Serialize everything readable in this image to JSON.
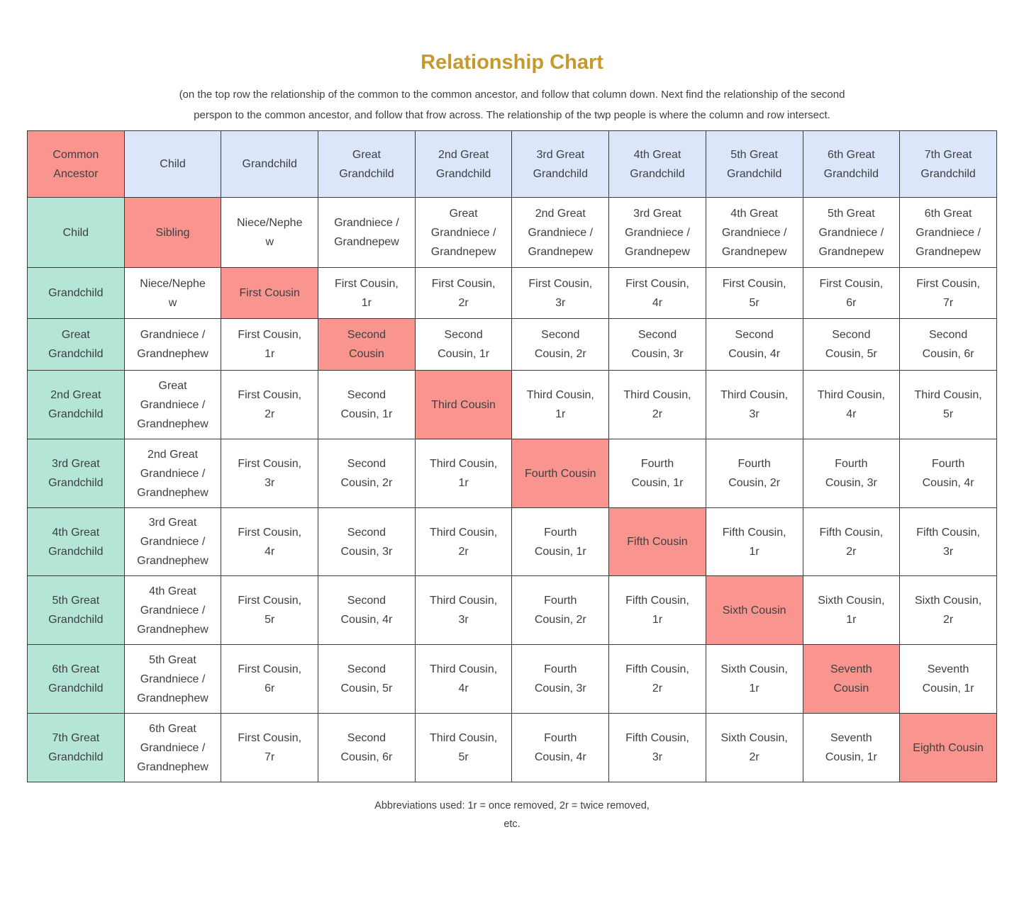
{
  "title": "Relationship Chart",
  "subtitle": "(on the top row the relationship of the common to the common ancestor, and follow  that column down. Next find the relationship of the second perspon to the common ancestor, and follow that frow across. The relationship of  the twp people is where the column and row intersect.",
  "colors": {
    "accent": "#F9958E",
    "row-header": "#B4E5D6",
    "col-header": "#DBE6FA",
    "title-gold": "#C49A2E",
    "text": "#3C4043"
  },
  "table": {
    "header": [
      "Common Ancestor",
      "Child",
      "Grandchild",
      "Great Grandchild",
      "2nd Great Grandchild",
      "3rd Great Grandchild",
      "4th Great Grandchild",
      "5th Great Grandchild",
      "6th Great Grandchild",
      "7th Great Grandchild"
    ],
    "rows": [
      {
        "cells": [
          "Child",
          "Sibling",
          "Niece/Nephew",
          "Grandniece / Grandnepew",
          "Great Grandniece / Grandnepew",
          "2nd Great Grandniece / Grandnepew",
          "3rd Great Grandniece / Grandnepew",
          "4th Great Grandniece / Grandnepew",
          "5th Great Grandniece / Grandnepew",
          "6th Great Grandniece / Grandnepew"
        ]
      },
      {
        "cells": [
          "Grandchild",
          "Niece/Nephew",
          "First Cousin",
          "First Cousin, 1r",
          "First Cousin, 2r",
          "First Cousin, 3r",
          "First Cousin, 4r",
          "First Cousin, 5r",
          "First Cousin, 6r",
          "First Cousin, 7r"
        ]
      },
      {
        "cells": [
          "Great Grandchild",
          "Grandniece / Grandnephew",
          "First Cousin, 1r",
          "Second Cousin",
          "Second Cousin, 1r",
          "Second Cousin, 2r",
          "Second Cousin, 3r",
          "Second Cousin, 4r",
          "Second Cousin, 5r",
          "Second Cousin, 6r"
        ]
      },
      {
        "cells": [
          "2nd Great Grandchild",
          "Great Grandniece / Grandnephew",
          "First Cousin, 2r",
          "Second Cousin, 1r",
          "Third Cousin",
          "Third Cousin, 1r",
          "Third Cousin, 2r",
          "Third Cousin, 3r",
          "Third Cousin, 4r",
          "Third Cousin, 5r"
        ]
      },
      {
        "cells": [
          "3rd Great Grandchild",
          "2nd Great Grandniece / Grandnephew",
          "First Cousin, 3r",
          "Second Cousin, 2r",
          "Third Cousin, 1r",
          "Fourth Cousin",
          "Fourth Cousin, 1r",
          "Fourth Cousin, 2r",
          "Fourth Cousin, 3r",
          "Fourth Cousin, 4r"
        ]
      },
      {
        "cells": [
          "4th Great Grandchild",
          "3rd Great Grandniece / Grandnephew",
          "First Cousin, 4r",
          "Second Cousin, 3r",
          "Third Cousin, 2r",
          "Fourth Cousin, 1r",
          "Fifth Cousin",
          "Fifth Cousin, 1r",
          "Fifth Cousin, 2r",
          "Fifth Cousin, 3r"
        ]
      },
      {
        "cells": [
          "5th Great Grandchild",
          "4th Great Grandniece / Grandnephew",
          "First Cousin, 5r",
          "Second Cousin, 4r",
          "Third Cousin, 3r",
          "Fourth Cousin, 2r",
          "Fifth Cousin, 1r",
          "Sixth Cousin",
          "Sixth Cousin, 1r",
          "Sixth Cousin, 2r"
        ]
      },
      {
        "cells": [
          "6th Great Grandchild",
          "5th Great Grandniece / Grandnephew",
          "First Cousin, 6r",
          "Second Cousin, 5r",
          "Third Cousin, 4r",
          "Fourth Cousin, 3r",
          "Fifth Cousin, 2r",
          "Sixth Cousin, 1r",
          "Seventh Cousin",
          "Seventh Cousin, 1r"
        ]
      },
      {
        "cells": [
          "7th Great Grandchild",
          "6th Great Grandniece / Grandnephew",
          "First Cousin, 7r",
          "Second Cousin, 6r",
          "Third Cousin, 5r",
          "Fourth Cousin, 4r",
          "Fifth Cousin, 3r",
          "Sixth Cousin, 2r",
          "Seventh Cousin, 1r",
          "Eighth Cousin"
        ]
      }
    ]
  },
  "footer": {
    "lines": [
      "Abbreviations used: 1r = once removed, 2r = twice removed,",
      "etc."
    ]
  }
}
